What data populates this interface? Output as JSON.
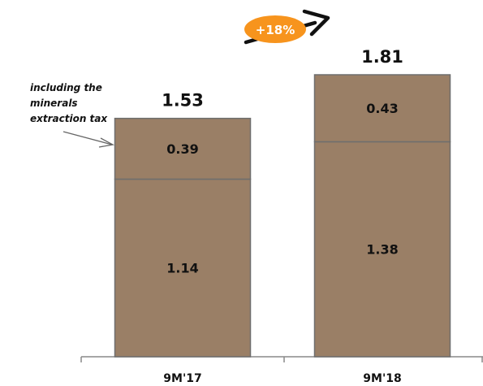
{
  "chart_data": {
    "type": "bar",
    "stacked": true,
    "categories": [
      "9M'17",
      "9M'18"
    ],
    "series": [
      {
        "values": [
          1.14,
          1.38
        ]
      },
      {
        "values": [
          0.39,
          0.43
        ]
      }
    ],
    "value_labels": [
      [
        "1.14",
        "1.38"
      ],
      [
        "0.39",
        "0.43"
      ]
    ],
    "totals": [
      1.53,
      1.81
    ],
    "total_labels": [
      "1.53",
      "1.81"
    ],
    "ylim": [
      0,
      1.81
    ],
    "grid": false,
    "legend": "none",
    "colors": {
      "bar_fill": "#9a7f66",
      "bar_edge": "#6e6e6e",
      "badge_fill": "#f7941d",
      "arrow": "#111111",
      "axis": "#888888"
    },
    "annotation": {
      "lines": [
        "including the",
        "minerals",
        "extraction tax"
      ]
    },
    "growth": {
      "label": "+18%"
    }
  }
}
